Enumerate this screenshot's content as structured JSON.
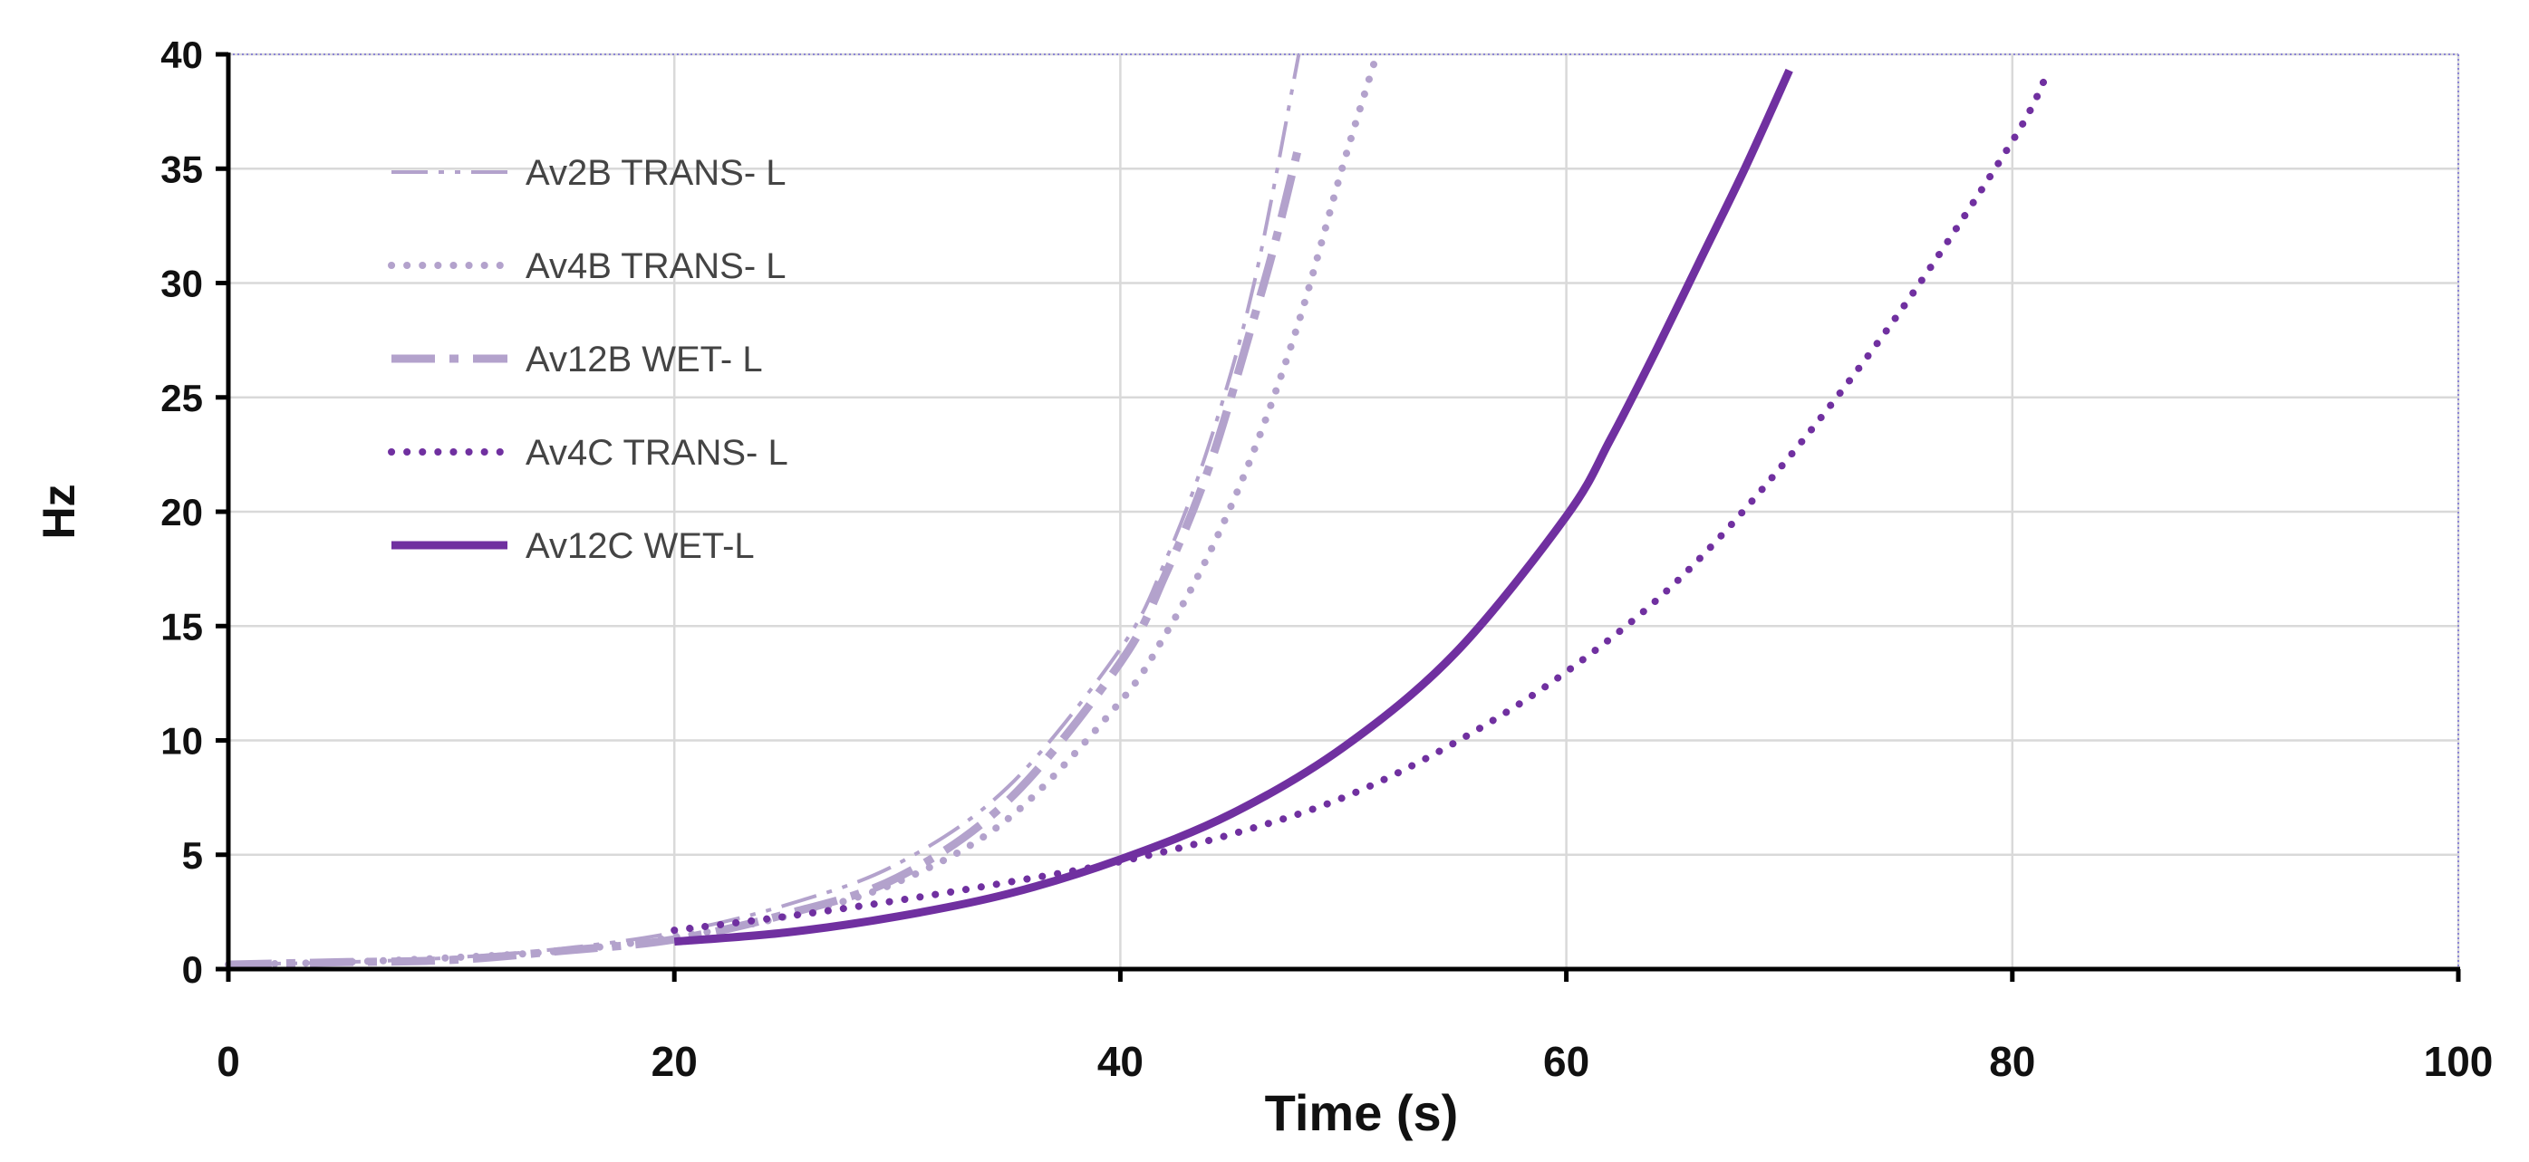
{
  "chart_data": {
    "type": "line",
    "title": "",
    "xlabel": "Time (s)",
    "ylabel": "Hz",
    "xlim": [
      0,
      100
    ],
    "ylim": [
      0,
      40
    ],
    "xticks": [
      0,
      20,
      40,
      60,
      80,
      100
    ],
    "yticks": [
      0,
      5,
      10,
      15,
      20,
      25,
      30,
      35,
      40
    ],
    "grid": true,
    "legend_position": "top-left",
    "colors": {
      "light": "#b3a2cc",
      "dark": "#7030a0",
      "grid": "#d9d9d9",
      "axis": "#000000"
    },
    "series": [
      {
        "name": "Av2B TRANS- L",
        "color": "#b3a2cc",
        "dash": "dash-dot-dot",
        "width": "thin",
        "x": [
          0,
          5,
          10,
          15,
          20,
          25,
          30,
          35,
          40,
          42,
          44,
          46,
          48
        ],
        "y": [
          0.2,
          0.3,
          0.5,
          0.9,
          1.6,
          2.8,
          4.6,
          8.0,
          14.0,
          17.8,
          23.0,
          30.0,
          40.0
        ]
      },
      {
        "name": "Av4B TRANS- L",
        "color": "#b3a2cc",
        "dash": "round-dot",
        "width": "medium",
        "x": [
          0,
          5,
          10,
          15,
          20,
          25,
          30,
          35,
          40,
          42,
          44,
          46,
          48,
          50,
          51.5
        ],
        "y": [
          0.2,
          0.3,
          0.5,
          0.8,
          1.4,
          2.3,
          3.8,
          6.6,
          11.7,
          14.6,
          18.2,
          22.7,
          28.3,
          35.2,
          40.0
        ]
      },
      {
        "name": "Av12B WET- L",
        "color": "#b3a2cc",
        "dash": "long-dash-dot",
        "width": "thick",
        "x": [
          0,
          5,
          10,
          15,
          20,
          25,
          30,
          35,
          40,
          42,
          44,
          46,
          47,
          48
        ],
        "y": [
          0.2,
          0.3,
          0.4,
          0.8,
          1.3,
          2.4,
          4.0,
          7.4,
          13.4,
          17.2,
          22.0,
          28.5,
          32.0,
          36.0
        ]
      },
      {
        "name": "Av4C TRANS- L",
        "color": "#7030a0",
        "dash": "round-dot",
        "width": "medium",
        "x": [
          20,
          25,
          30,
          35,
          40,
          45,
          50,
          55,
          60,
          65,
          70,
          75,
          80,
          81.5
        ],
        "y": [
          1.7,
          2.3,
          3.0,
          3.8,
          4.7,
          5.9,
          7.5,
          9.9,
          13.0,
          17.0,
          22.4,
          28.8,
          36.2,
          39.0
        ]
      },
      {
        "name": "Av12C WET-L",
        "color": "#7030a0",
        "dash": "solid",
        "width": "thick",
        "x": [
          20,
          25,
          30,
          35,
          40,
          45,
          50,
          55,
          60,
          62,
          64,
          66,
          68,
          70
        ],
        "y": [
          1.2,
          1.6,
          2.3,
          3.3,
          4.8,
          6.8,
          9.7,
          13.8,
          19.8,
          23.2,
          27.0,
          31.0,
          35.0,
          39.3
        ]
      }
    ]
  }
}
